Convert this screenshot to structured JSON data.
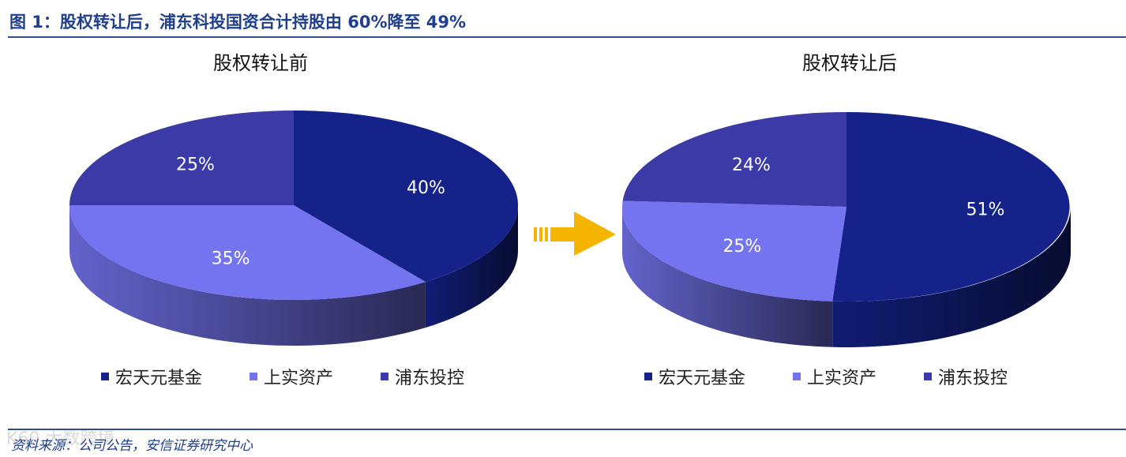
{
  "figure": {
    "title": "图 1：股权转让后，浦东科投国资合计持股由 60%降至 49%",
    "source": "资料来源：公司公告，安信证券研究中心",
    "watermark": "K60 大数跨境"
  },
  "colors": {
    "hongtianyuan": "#14228a",
    "shangshi": "#7474f0",
    "pudong": "#3c3aa6",
    "arrow": "#f4b400",
    "rule": "#2e4f8f",
    "title": "#1f3f8c"
  },
  "chart_data": [
    {
      "type": "pie",
      "title": "股权转让前",
      "slices": [
        {
          "name": "宏天元基金",
          "value": 40,
          "label": "40%"
        },
        {
          "name": "上实资产",
          "value": 35,
          "label": "35%"
        },
        {
          "name": "浦东投控",
          "value": 25,
          "label": "25%"
        }
      ],
      "legend": [
        "宏天元基金",
        "上实资产",
        "浦东投控"
      ],
      "legend_position": "bottom"
    },
    {
      "type": "pie",
      "title": "股权转让后",
      "slices": [
        {
          "name": "宏天元基金",
          "value": 51,
          "label": "51%"
        },
        {
          "name": "上实资产",
          "value": 25,
          "label": "25%"
        },
        {
          "name": "浦东投控",
          "value": 24,
          "label": "24%"
        }
      ],
      "legend": [
        "宏天元基金",
        "上实资产",
        "浦东投控"
      ],
      "legend_position": "bottom"
    }
  ]
}
